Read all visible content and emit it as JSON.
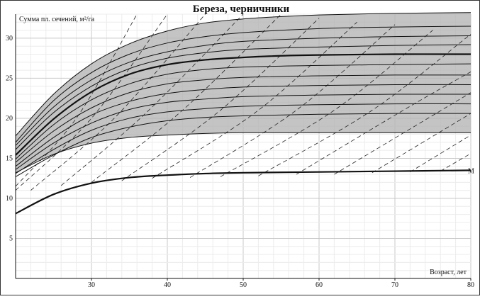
{
  "chart_data": {
    "type": "line",
    "title": "Береза, черничники",
    "ylabel": "Сумма пл. сечений, м²/га",
    "xlabel": "Возраст, лет",
    "xlim": [
      20,
      80
    ],
    "ylim": [
      0,
      33
    ],
    "xticks": [
      "30",
      "40",
      "50",
      "60",
      "70",
      "80"
    ],
    "yticks": [
      "5",
      "10",
      "15",
      "20",
      "25",
      "30"
    ],
    "grid": true,
    "shaded_band": {
      "y_min": 18.2,
      "y_max": 33.2,
      "color": "#b5b5b5"
    },
    "series": [
      {
        "kind": "upper-envelope",
        "x": [
          20,
          25,
          30,
          35,
          40,
          45,
          50,
          55,
          60,
          70,
          80
        ],
        "y": [
          17.8,
          23.0,
          26.8,
          29.3,
          30.9,
          31.9,
          32.4,
          32.7,
          32.9,
          33.1,
          33.2
        ]
      },
      {
        "kind": "lower-envelope",
        "x": [
          20,
          25,
          30,
          35,
          40,
          45,
          50,
          55,
          60,
          70,
          80
        ],
        "y": [
          13.2,
          15.5,
          16.9,
          17.6,
          17.9,
          18.1,
          18.2,
          18.2,
          18.2,
          18.2,
          18.2
        ]
      },
      {
        "kind": "average-bold",
        "x": [
          20,
          25,
          30,
          35,
          40,
          45,
          50,
          55,
          60,
          70,
          80
        ],
        "y": [
          15.4,
          19.9,
          23.3,
          25.5,
          26.7,
          27.3,
          27.6,
          27.8,
          27.9,
          28.0,
          28.0
        ]
      },
      {
        "kind": "reference-bold",
        "label": "M",
        "x": [
          20,
          25,
          30,
          35,
          40,
          45,
          50,
          60,
          70,
          80
        ],
        "y": [
          8.1,
          10.5,
          11.9,
          12.6,
          12.9,
          13.1,
          13.2,
          13.3,
          13.4,
          13.5
        ]
      },
      {
        "kind": "thin",
        "x": [
          20,
          25,
          30,
          35,
          40,
          45,
          50,
          60,
          70,
          80
        ],
        "y": [
          17.0,
          22.2,
          25.7,
          28.0,
          29.4,
          30.2,
          30.7,
          31.2,
          31.4,
          31.5
        ]
      },
      {
        "kind": "thin",
        "x": [
          20,
          25,
          30,
          35,
          40,
          45,
          50,
          60,
          70,
          80
        ],
        "y": [
          16.6,
          21.4,
          24.8,
          27.0,
          28.3,
          29.1,
          29.6,
          30.0,
          30.2,
          30.3
        ]
      },
      {
        "kind": "thin",
        "x": [
          20,
          25,
          30,
          35,
          40,
          45,
          50,
          60,
          70,
          80
        ],
        "y": [
          16.1,
          20.7,
          24.0,
          26.2,
          27.5,
          28.2,
          28.6,
          28.9,
          29.1,
          29.2
        ]
      },
      {
        "kind": "thin",
        "x": [
          20,
          25,
          30,
          35,
          40,
          45,
          50,
          60,
          70,
          80
        ],
        "y": [
          14.9,
          19.2,
          22.3,
          24.3,
          25.5,
          26.1,
          26.4,
          26.6,
          26.7,
          26.8
        ]
      },
      {
        "kind": "thin",
        "x": [
          20,
          25,
          30,
          35,
          40,
          45,
          50,
          60,
          70,
          80
        ],
        "y": [
          14.5,
          18.4,
          21.3,
          23.2,
          24.3,
          24.8,
          25.1,
          25.3,
          25.4,
          25.4
        ]
      },
      {
        "kind": "thin",
        "x": [
          20,
          25,
          30,
          35,
          40,
          45,
          50,
          60,
          70,
          80
        ],
        "y": [
          14.0,
          17.6,
          20.4,
          22.1,
          23.1,
          23.6,
          23.9,
          24.1,
          24.2,
          24.2
        ]
      },
      {
        "kind": "thin",
        "x": [
          20,
          25,
          30,
          35,
          40,
          45,
          50,
          60,
          70,
          80
        ],
        "y": [
          13.6,
          16.9,
          19.4,
          21.1,
          22.0,
          22.4,
          22.7,
          22.9,
          23.0,
          23.0
        ]
      },
      {
        "kind": "thin",
        "x": [
          20,
          25,
          30,
          35,
          40,
          45,
          50,
          60,
          70,
          80
        ],
        "y": [
          13.1,
          16.1,
          18.5,
          20.0,
          20.8,
          21.2,
          21.5,
          21.7,
          21.8,
          21.8
        ]
      },
      {
        "kind": "thin",
        "x": [
          20,
          25,
          30,
          35,
          40,
          45,
          50,
          60,
          70,
          80
        ],
        "y": [
          12.7,
          15.4,
          17.6,
          18.9,
          19.7,
          20.1,
          20.3,
          20.5,
          20.6,
          20.6
        ]
      }
    ],
    "dashed_lines": [
      {
        "x": [
          20,
          28,
          36
        ],
        "y": [
          11.5,
          20.0,
          33.0
        ]
      },
      {
        "x": [
          20,
          30,
          40
        ],
        "y": [
          11.0,
          20.0,
          33.0
        ]
      },
      {
        "x": [
          22,
          33,
          45
        ],
        "y": [
          11.0,
          20.0,
          33.0
        ]
      },
      {
        "x": [
          26,
          37,
          50
        ],
        "y": [
          11.6,
          20.5,
          33.0
        ]
      },
      {
        "x": [
          30,
          42,
          55
        ],
        "y": [
          12.0,
          21.0,
          33.0
        ]
      },
      {
        "x": [
          34,
          47,
          60
        ],
        "y": [
          12.2,
          21.0,
          32.5
        ]
      },
      {
        "x": [
          38,
          52,
          65
        ],
        "y": [
          12.5,
          21.0,
          32.0
        ]
      },
      {
        "x": [
          43,
          57,
          70
        ],
        "y": [
          12.6,
          21.0,
          31.7
        ]
      },
      {
        "x": [
          47,
          62,
          75
        ],
        "y": [
          12.7,
          21.0,
          31.0
        ]
      },
      {
        "x": [
          52,
          67,
          80
        ],
        "y": [
          12.8,
          21.0,
          30.5
        ]
      },
      {
        "x": [
          57,
          72,
          80
        ],
        "y": [
          13.0,
          21.5,
          25.8
        ]
      },
      {
        "x": [
          62,
          77,
          80
        ],
        "y": [
          13.0,
          21.5,
          23.2
        ]
      },
      {
        "x": [
          67,
          80
        ],
        "y": [
          13.2,
          20.6
        ]
      },
      {
        "x": [
          72,
          80
        ],
        "y": [
          13.3,
          17.9
        ]
      },
      {
        "x": [
          76,
          80
        ],
        "y": [
          13.4,
          15.6
        ]
      }
    ]
  }
}
